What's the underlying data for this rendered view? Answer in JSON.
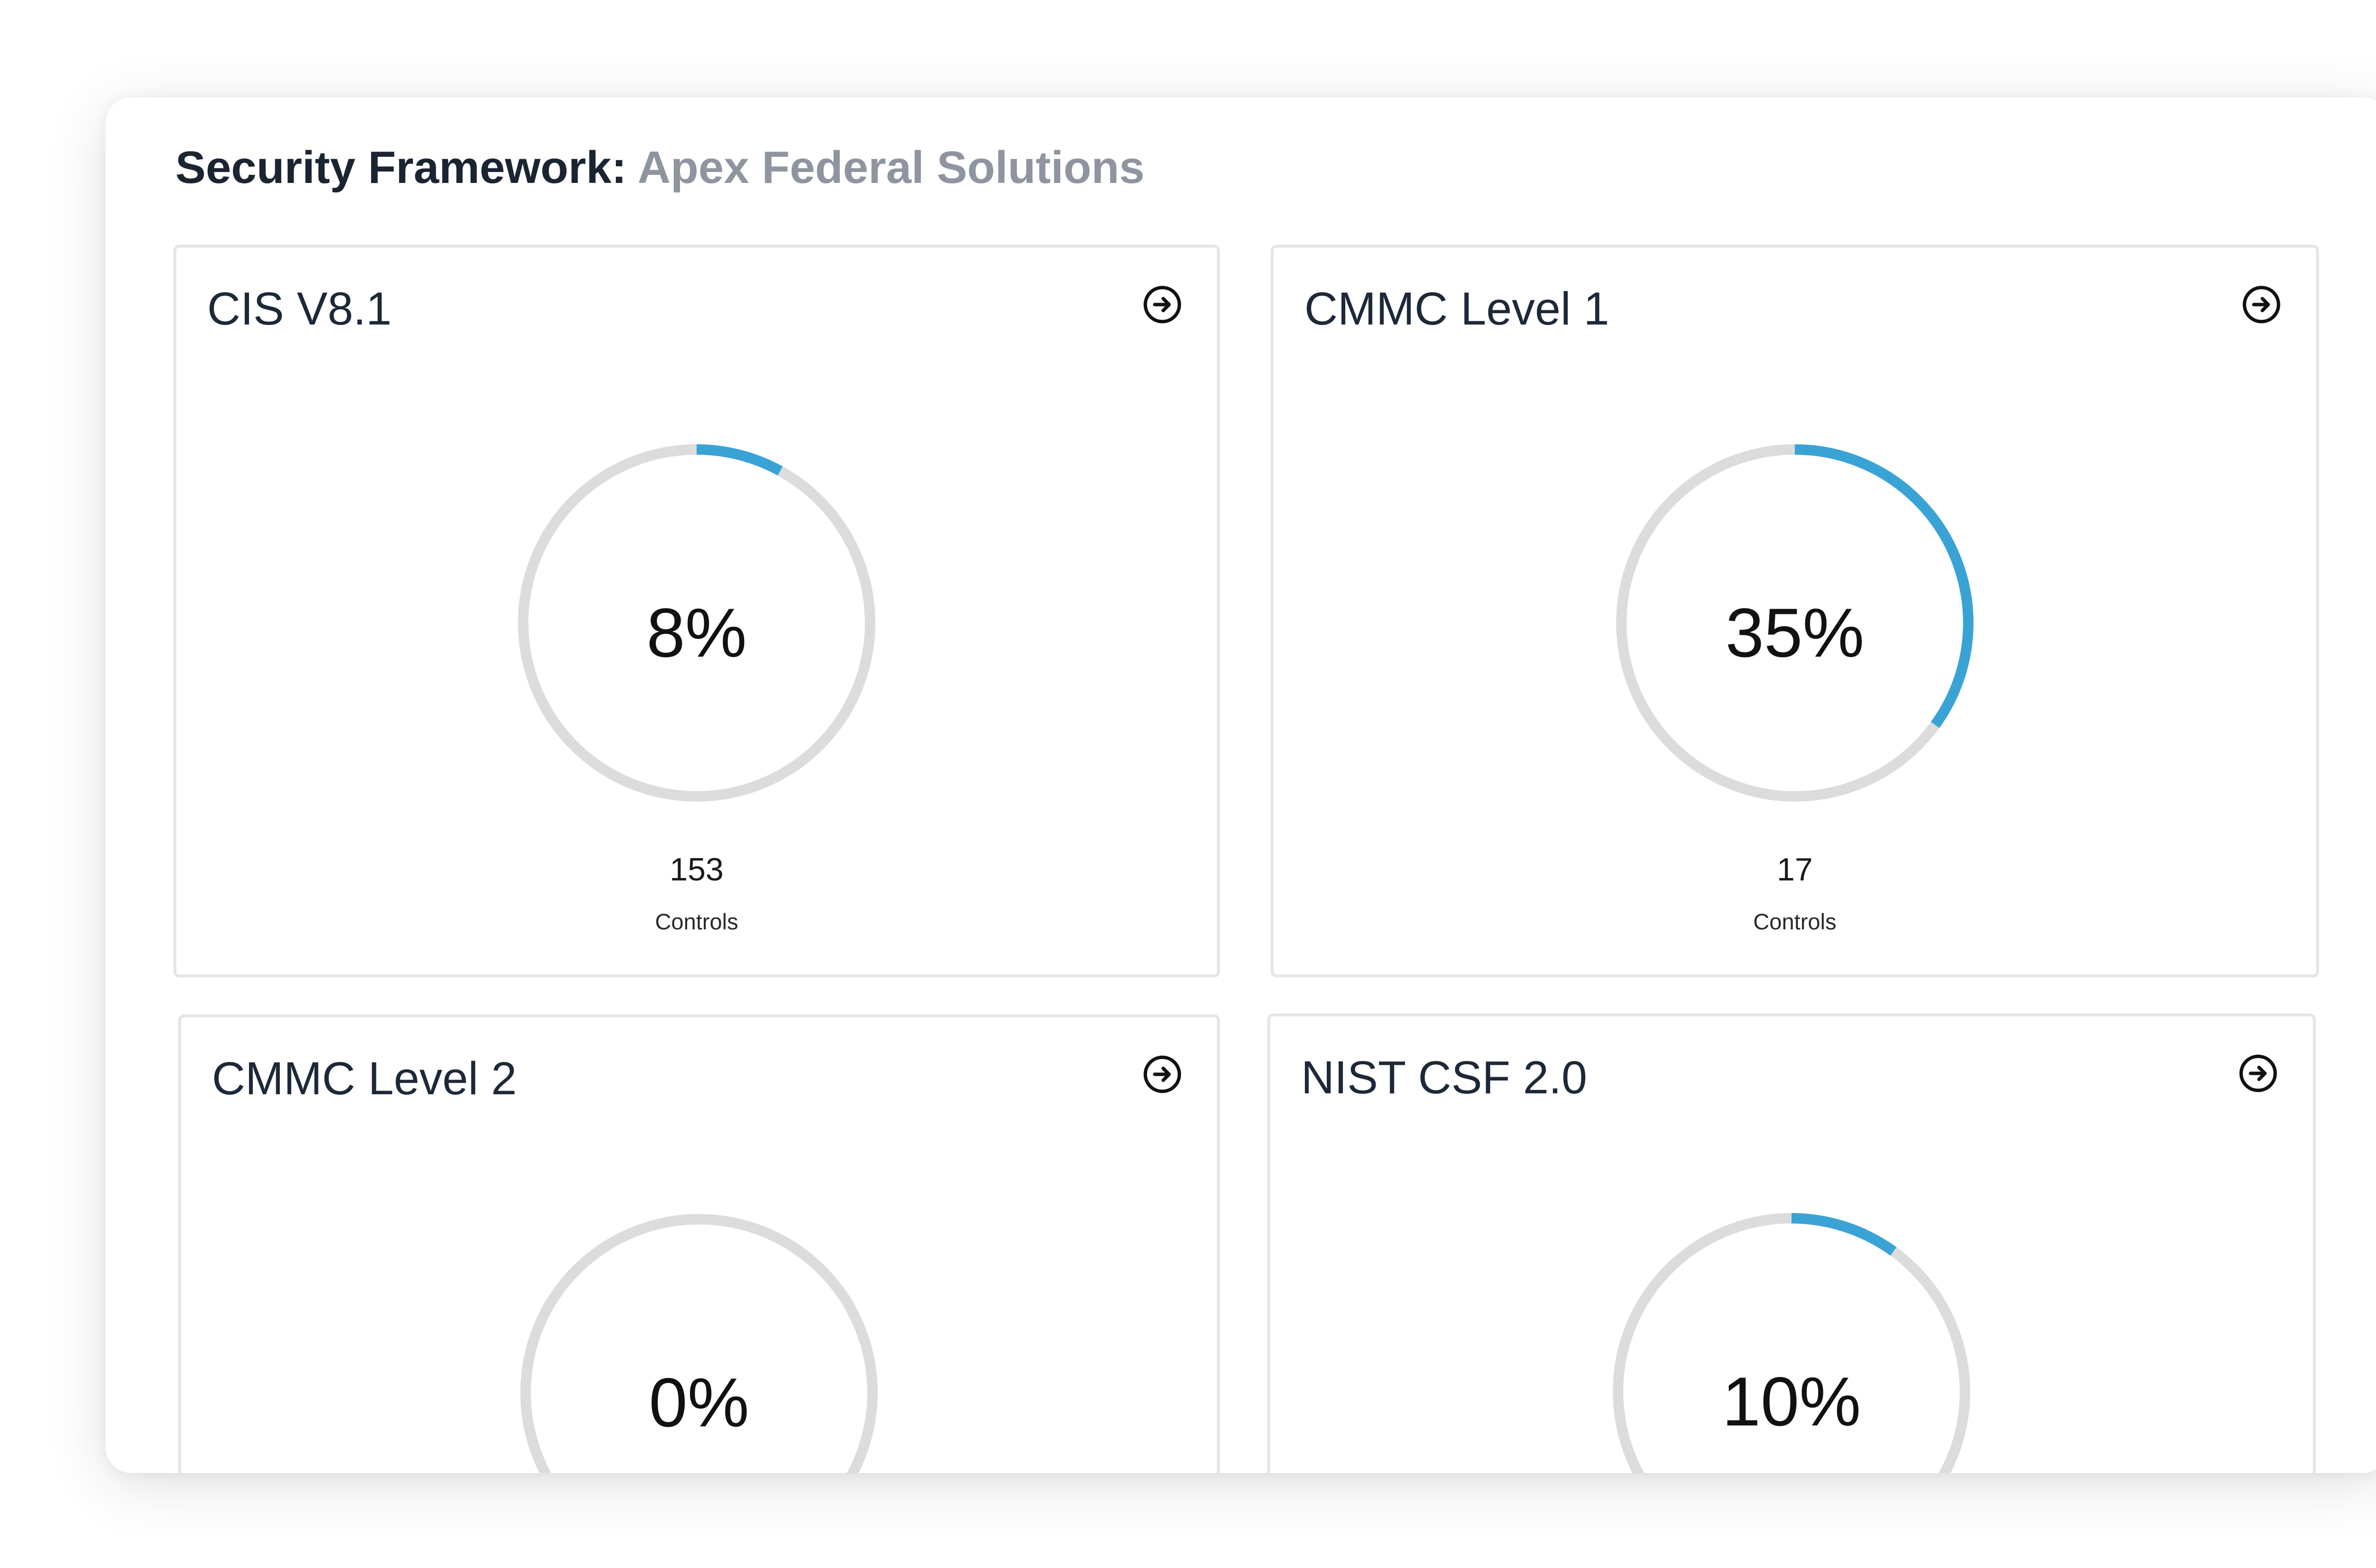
{
  "header": {
    "label": "Security Framework:",
    "organization": "Apex Federal Solutions"
  },
  "colors": {
    "progress": "#3aa3d5",
    "track": "#dcdcdc"
  },
  "frameworks": [
    {
      "name": "CIS V8.1",
      "percent_label": "8%",
      "progress": 0.08,
      "controls": "153",
      "controls_label": "Controls"
    },
    {
      "name": "CMMC Level 1",
      "percent_label": "35%",
      "progress": 0.35,
      "controls": "17",
      "controls_label": "Controls"
    },
    {
      "name": "CMMC Level 2",
      "percent_label": "0%",
      "progress": 0.0
    },
    {
      "name": "NIST CSF 2.0",
      "percent_label": "10%",
      "progress": 0.1
    }
  ]
}
